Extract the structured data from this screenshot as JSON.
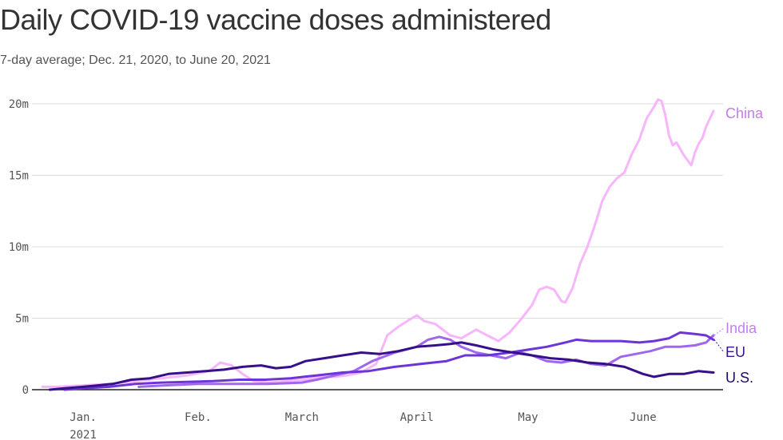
{
  "title": "Daily COVID-19 vaccine doses administered",
  "subtitle": "7-day average; Dec. 21, 2020, to June 20, 2021",
  "chart_data": {
    "type": "line",
    "xlim": [
      "2020-12-21",
      "2021-06-20"
    ],
    "ylim": [
      0,
      20
    ],
    "yunit": "m",
    "grid": true,
    "legend": "labels at right end of lines",
    "y_ticks": [
      {
        "value": 0,
        "label": "0"
      },
      {
        "value": 5,
        "label": "5m"
      },
      {
        "value": 10,
        "label": "10m"
      },
      {
        "value": 15,
        "label": "15m"
      },
      {
        "value": 20,
        "label": "20m"
      }
    ],
    "x_ticks": [
      {
        "date": "2021-01-01",
        "label": "Jan.",
        "sublabel": "2021"
      },
      {
        "date": "2021-02-01",
        "label": "Feb.",
        "sublabel": ""
      },
      {
        "date": "2021-03-01",
        "label": "March",
        "sublabel": ""
      },
      {
        "date": "2021-04-01",
        "label": "April",
        "sublabel": ""
      },
      {
        "date": "2021-05-01",
        "label": "May",
        "sublabel": ""
      },
      {
        "date": "2021-06-01",
        "label": "June",
        "sublabel": ""
      }
    ],
    "series": [
      {
        "name": "China",
        "color": "#f7b6fb",
        "label_color": "#c47fe0",
        "points": [
          [
            "2020-12-21",
            0.2
          ],
          [
            "2020-12-25",
            0.2
          ],
          [
            "2021-01-01",
            0.3
          ],
          [
            "2021-01-08",
            0.4
          ],
          [
            "2021-01-15",
            0.6
          ],
          [
            "2021-01-22",
            0.8
          ],
          [
            "2021-01-29",
            1.0
          ],
          [
            "2021-02-04",
            1.3
          ],
          [
            "2021-02-07",
            1.9
          ],
          [
            "2021-02-10",
            1.7
          ],
          [
            "2021-02-13",
            1.1
          ],
          [
            "2021-02-16",
            0.6
          ],
          [
            "2021-02-20",
            0.5
          ],
          [
            "2021-02-25",
            0.6
          ],
          [
            "2021-03-02",
            0.7
          ],
          [
            "2021-03-06",
            0.9
          ],
          [
            "2021-03-10",
            0.9
          ],
          [
            "2021-03-13",
            1.0
          ],
          [
            "2021-03-17",
            1.2
          ],
          [
            "2021-03-21",
            1.8
          ],
          [
            "2021-03-24",
            3.8
          ],
          [
            "2021-03-27",
            4.4
          ],
          [
            "2021-03-30",
            4.9
          ],
          [
            "2021-04-01",
            5.2
          ],
          [
            "2021-04-03",
            4.8
          ],
          [
            "2021-04-06",
            4.6
          ],
          [
            "2021-04-10",
            3.8
          ],
          [
            "2021-04-13",
            3.6
          ],
          [
            "2021-04-17",
            4.2
          ],
          [
            "2021-04-20",
            3.8
          ],
          [
            "2021-04-23",
            3.4
          ],
          [
            "2021-04-26",
            4.0
          ],
          [
            "2021-04-29",
            4.9
          ],
          [
            "2021-05-02",
            5.9
          ],
          [
            "2021-05-04",
            7.0
          ],
          [
            "2021-05-06",
            7.2
          ],
          [
            "2021-05-08",
            7.0
          ],
          [
            "2021-05-10",
            6.2
          ],
          [
            "2021-05-11",
            6.1
          ],
          [
            "2021-05-13",
            7.1
          ],
          [
            "2021-05-15",
            8.8
          ],
          [
            "2021-05-17",
            10.0
          ],
          [
            "2021-05-19",
            11.5
          ],
          [
            "2021-05-21",
            13.2
          ],
          [
            "2021-05-23",
            14.2
          ],
          [
            "2021-05-25",
            14.8
          ],
          [
            "2021-05-27",
            15.2
          ],
          [
            "2021-05-29",
            16.5
          ],
          [
            "2021-05-31",
            17.5
          ],
          [
            "2021-06-02",
            19.0
          ],
          [
            "2021-06-04",
            19.8
          ],
          [
            "2021-06-05",
            20.3
          ],
          [
            "2021-06-06",
            20.2
          ],
          [
            "2021-06-07",
            19.2
          ],
          [
            "2021-06-08",
            17.8
          ],
          [
            "2021-06-09",
            17.1
          ],
          [
            "2021-06-10",
            17.3
          ],
          [
            "2021-06-12",
            16.4
          ],
          [
            "2021-06-14",
            15.7
          ],
          [
            "2021-06-15",
            16.6
          ],
          [
            "2021-06-16",
            17.2
          ],
          [
            "2021-06-17",
            17.6
          ],
          [
            "2021-06-18",
            18.4
          ],
          [
            "2021-06-20",
            19.5
          ]
        ]
      },
      {
        "name": "India",
        "color": "#a066ef",
        "label_color": "#c07ff5",
        "points": [
          [
            "2021-01-16",
            0.2
          ],
          [
            "2021-01-23",
            0.3
          ],
          [
            "2021-02-01",
            0.4
          ],
          [
            "2021-02-10",
            0.4
          ],
          [
            "2021-02-20",
            0.4
          ],
          [
            "2021-03-01",
            0.5
          ],
          [
            "2021-03-05",
            0.7
          ],
          [
            "2021-03-10",
            1.0
          ],
          [
            "2021-03-15",
            1.3
          ],
          [
            "2021-03-20",
            2.0
          ],
          [
            "2021-03-26",
            2.6
          ],
          [
            "2021-04-01",
            3.0
          ],
          [
            "2021-04-04",
            3.5
          ],
          [
            "2021-04-07",
            3.7
          ],
          [
            "2021-04-10",
            3.5
          ],
          [
            "2021-04-13",
            3.0
          ],
          [
            "2021-04-17",
            2.6
          ],
          [
            "2021-04-21",
            2.4
          ],
          [
            "2021-04-25",
            2.2
          ],
          [
            "2021-04-29",
            2.6
          ],
          [
            "2021-05-02",
            2.4
          ],
          [
            "2021-05-06",
            2.0
          ],
          [
            "2021-05-10",
            1.9
          ],
          [
            "2021-05-14",
            2.1
          ],
          [
            "2021-05-18",
            1.8
          ],
          [
            "2021-05-22",
            1.7
          ],
          [
            "2021-05-26",
            2.3
          ],
          [
            "2021-05-30",
            2.5
          ],
          [
            "2021-06-03",
            2.7
          ],
          [
            "2021-06-07",
            3.0
          ],
          [
            "2021-06-11",
            3.0
          ],
          [
            "2021-06-15",
            3.1
          ],
          [
            "2021-06-18",
            3.3
          ],
          [
            "2021-06-20",
            3.8
          ]
        ]
      },
      {
        "name": "EU",
        "color": "#6d35d8",
        "label_color": "#3d1391",
        "points": [
          [
            "2020-12-27",
            0.0
          ],
          [
            "2021-01-01",
            0.1
          ],
          [
            "2021-01-08",
            0.2
          ],
          [
            "2021-01-15",
            0.4
          ],
          [
            "2021-01-22",
            0.5
          ],
          [
            "2021-01-29",
            0.55
          ],
          [
            "2021-02-05",
            0.6
          ],
          [
            "2021-02-12",
            0.7
          ],
          [
            "2021-02-19",
            0.7
          ],
          [
            "2021-02-26",
            0.8
          ],
          [
            "2021-03-05",
            1.0
          ],
          [
            "2021-03-12",
            1.2
          ],
          [
            "2021-03-19",
            1.3
          ],
          [
            "2021-03-26",
            1.6
          ],
          [
            "2021-04-02",
            1.8
          ],
          [
            "2021-04-09",
            2.0
          ],
          [
            "2021-04-14",
            2.4
          ],
          [
            "2021-04-20",
            2.4
          ],
          [
            "2021-04-26",
            2.6
          ],
          [
            "2021-05-01",
            2.8
          ],
          [
            "2021-05-06",
            3.0
          ],
          [
            "2021-05-11",
            3.3
          ],
          [
            "2021-05-14",
            3.5
          ],
          [
            "2021-05-18",
            3.4
          ],
          [
            "2021-05-22",
            3.4
          ],
          [
            "2021-05-26",
            3.4
          ],
          [
            "2021-05-31",
            3.3
          ],
          [
            "2021-06-04",
            3.4
          ],
          [
            "2021-06-08",
            3.6
          ],
          [
            "2021-06-11",
            4.0
          ],
          [
            "2021-06-15",
            3.9
          ],
          [
            "2021-06-18",
            3.8
          ],
          [
            "2021-06-20",
            3.5
          ]
        ]
      },
      {
        "name": "U.S.",
        "color": "#35108a",
        "label_color": "#1f0a63",
        "points": [
          [
            "2020-12-23",
            0.0
          ],
          [
            "2020-12-27",
            0.1
          ],
          [
            "2021-01-01",
            0.2
          ],
          [
            "2021-01-05",
            0.3
          ],
          [
            "2021-01-09",
            0.4
          ],
          [
            "2021-01-14",
            0.7
          ],
          [
            "2021-01-19",
            0.8
          ],
          [
            "2021-01-24",
            1.1
          ],
          [
            "2021-01-29",
            1.2
          ],
          [
            "2021-02-03",
            1.3
          ],
          [
            "2021-02-08",
            1.4
          ],
          [
            "2021-02-13",
            1.6
          ],
          [
            "2021-02-18",
            1.7
          ],
          [
            "2021-02-22",
            1.5
          ],
          [
            "2021-02-26",
            1.6
          ],
          [
            "2021-03-02",
            2.0
          ],
          [
            "2021-03-07",
            2.2
          ],
          [
            "2021-03-12",
            2.4
          ],
          [
            "2021-03-17",
            2.6
          ],
          [
            "2021-03-22",
            2.5
          ],
          [
            "2021-03-27",
            2.7
          ],
          [
            "2021-04-01",
            3.0
          ],
          [
            "2021-04-06",
            3.1
          ],
          [
            "2021-04-10",
            3.2
          ],
          [
            "2021-04-13",
            3.3
          ],
          [
            "2021-04-17",
            3.1
          ],
          [
            "2021-04-22",
            2.8
          ],
          [
            "2021-04-27",
            2.6
          ],
          [
            "2021-05-02",
            2.4
          ],
          [
            "2021-05-07",
            2.2
          ],
          [
            "2021-05-12",
            2.1
          ],
          [
            "2021-05-17",
            1.9
          ],
          [
            "2021-05-22",
            1.8
          ],
          [
            "2021-05-27",
            1.6
          ],
          [
            "2021-06-01",
            1.1
          ],
          [
            "2021-06-04",
            0.9
          ],
          [
            "2021-06-08",
            1.1
          ],
          [
            "2021-06-12",
            1.1
          ],
          [
            "2021-06-16",
            1.3
          ],
          [
            "2021-06-20",
            1.2
          ]
        ]
      }
    ]
  }
}
